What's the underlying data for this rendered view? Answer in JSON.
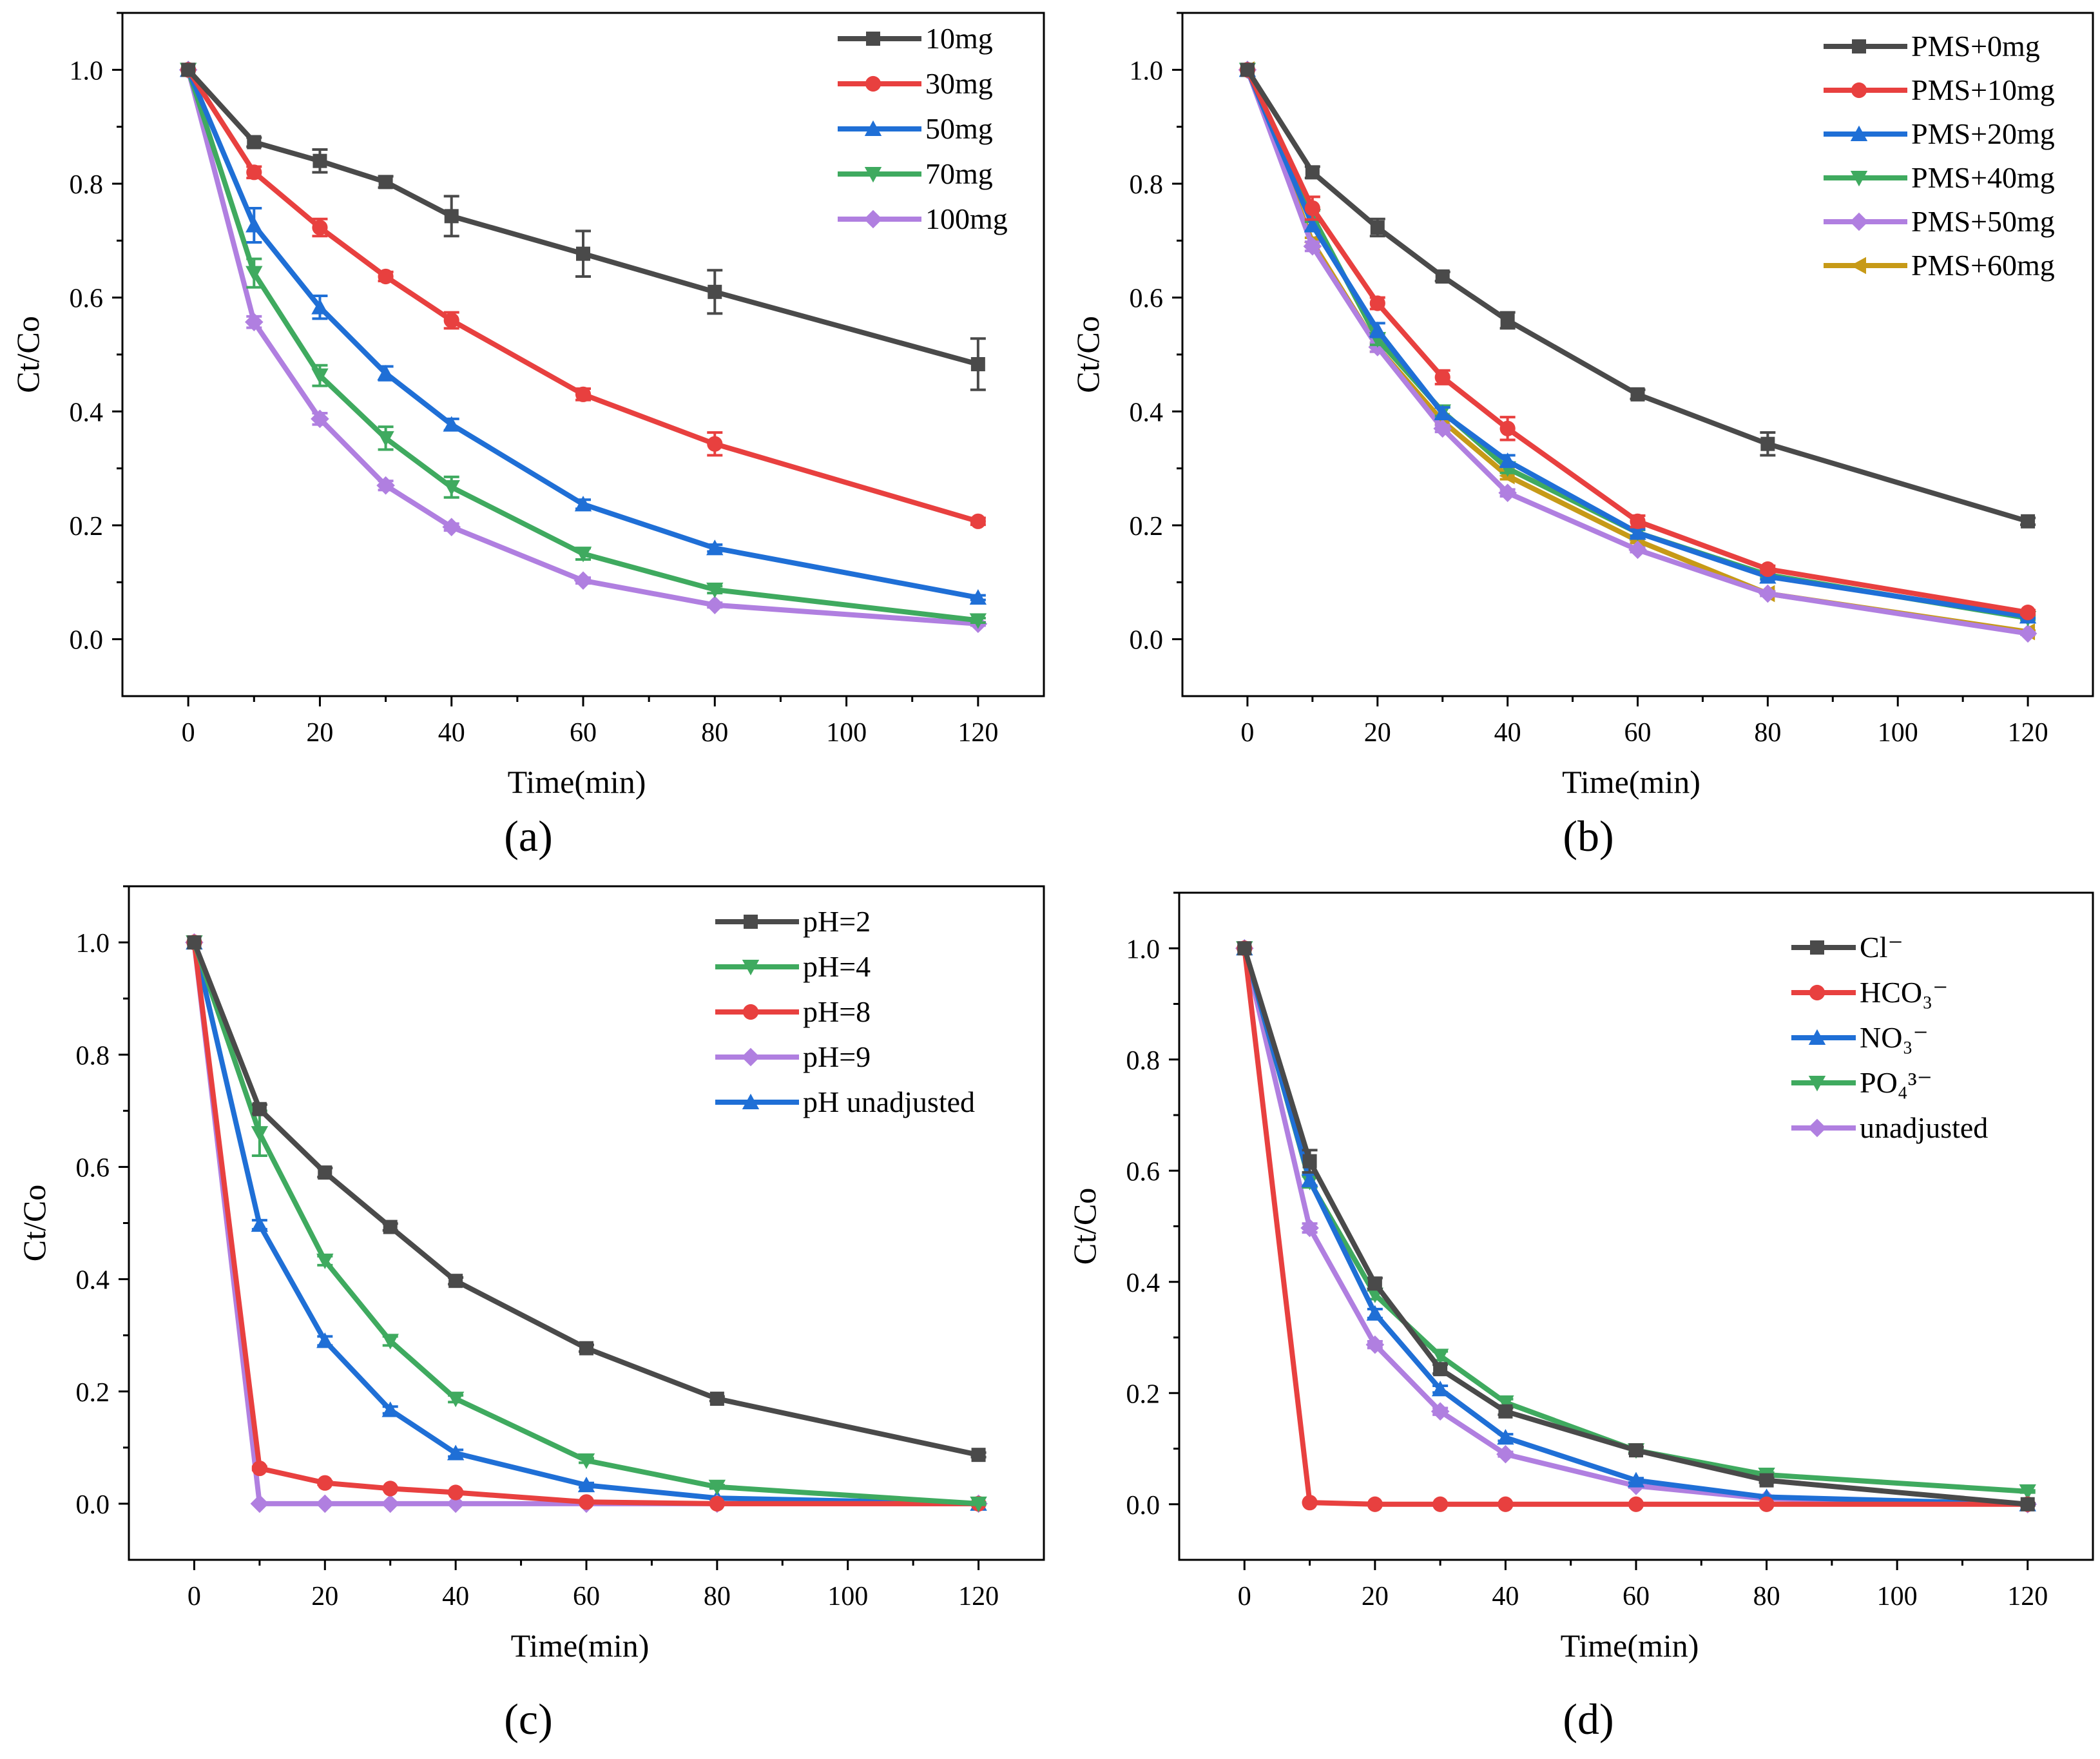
{
  "colors": {
    "black": "#4a4a4a",
    "red": "#e8403f",
    "blue": "#1f6fd6",
    "green": "#3faa5f",
    "purple": "#b07fe0",
    "gold": "#c79a17"
  },
  "chart_data": [
    {
      "type": "line",
      "panel_label": "(a)",
      "xlabel": "Time(min)",
      "ylabel": "Ct/Co",
      "xlim": [
        -10,
        130
      ],
      "ylim": [
        -0.1,
        1.1
      ],
      "xticks": [
        0,
        20,
        40,
        60,
        80,
        100,
        120
      ],
      "yticks": [
        0.0,
        0.2,
        0.4,
        0.6,
        0.8,
        1.0
      ],
      "xtick_labels": [
        "0",
        "20",
        "40",
        "60",
        "80",
        "100",
        "120"
      ],
      "ytick_labels": [
        "0.0",
        "0.2",
        "0.4",
        "0.6",
        "0.8",
        "1.0"
      ],
      "legend": "top-right",
      "x": [
        0,
        10,
        20,
        30,
        40,
        60,
        80,
        120
      ],
      "series": [
        {
          "name": "10mg",
          "color": "#4a4a4a",
          "marker": "square",
          "values": [
            1.0,
            0.873,
            0.84,
            0.803,
            0.743,
            0.677,
            0.61,
            0.483
          ],
          "errors": [
            0,
            0.008,
            0.02,
            0.01,
            0.035,
            0.04,
            0.038,
            0.045
          ]
        },
        {
          "name": "30mg",
          "color": "#e8403f",
          "marker": "circle",
          "values": [
            1.0,
            0.82,
            0.723,
            0.637,
            0.56,
            0.43,
            0.343,
            0.207
          ],
          "errors": [
            0,
            0.01,
            0.015,
            0.008,
            0.014,
            0.01,
            0.02,
            0.006
          ]
        },
        {
          "name": "50mg",
          "color": "#1f6fd6",
          "marker": "triangle-up",
          "values": [
            1.0,
            0.727,
            0.583,
            0.467,
            0.377,
            0.237,
            0.16,
            0.073
          ],
          "errors": [
            0,
            0.03,
            0.02,
            0.012,
            0.01,
            0.008,
            0.006,
            0.004
          ]
        },
        {
          "name": "70mg",
          "color": "#3faa5f",
          "marker": "triangle-down",
          "values": [
            1.0,
            0.643,
            0.463,
            0.353,
            0.267,
            0.15,
            0.087,
            0.033
          ],
          "errors": [
            0,
            0.025,
            0.018,
            0.02,
            0.018,
            0.01,
            0.006,
            0.004
          ]
        },
        {
          "name": "100mg",
          "color": "#b07fe0",
          "marker": "diamond",
          "values": [
            1.0,
            0.557,
            0.387,
            0.27,
            0.197,
            0.103,
            0.06,
            0.027
          ],
          "errors": [
            0,
            0.01,
            0.01,
            0.008,
            0.006,
            0.005,
            0.004,
            0.003
          ]
        }
      ]
    },
    {
      "type": "line",
      "panel_label": "(b)",
      "xlabel": "Time(min)",
      "ylabel": "Ct/Co",
      "xlim": [
        -10,
        130
      ],
      "ylim": [
        -0.1,
        1.1
      ],
      "xticks": [
        0,
        20,
        40,
        60,
        80,
        100,
        120
      ],
      "yticks": [
        0.0,
        0.2,
        0.4,
        0.6,
        0.8,
        1.0
      ],
      "xtick_labels": [
        "0",
        "20",
        "40",
        "60",
        "80",
        "100",
        "120"
      ],
      "ytick_labels": [
        "0.0",
        "0.2",
        "0.4",
        "0.6",
        "0.8",
        "1.0"
      ],
      "legend": "top-right",
      "x": [
        0,
        10,
        20,
        30,
        40,
        60,
        80,
        120
      ],
      "series": [
        {
          "name": "PMS+0mg",
          "color": "#4a4a4a",
          "marker": "square",
          "values": [
            1.0,
            0.82,
            0.723,
            0.637,
            0.56,
            0.43,
            0.343,
            0.207
          ],
          "errors": [
            0,
            0.01,
            0.015,
            0.008,
            0.014,
            0.008,
            0.02,
            0.006
          ]
        },
        {
          "name": "PMS+10mg",
          "color": "#e8403f",
          "marker": "circle",
          "values": [
            1.0,
            0.757,
            0.59,
            0.46,
            0.37,
            0.207,
            0.123,
            0.047
          ],
          "errors": [
            0,
            0.02,
            0.01,
            0.012,
            0.02,
            0.01,
            0.006,
            0.004
          ]
        },
        {
          "name": "PMS+20mg",
          "color": "#1f6fd6",
          "marker": "triangle-up",
          "values": [
            1.0,
            0.727,
            0.543,
            0.397,
            0.313,
            0.187,
            0.11,
            0.04
          ],
          "errors": [
            0,
            0.01,
            0.012,
            0.01,
            0.01,
            0.006,
            0.005,
            0.003
          ]
        },
        {
          "name": "PMS+40mg",
          "color": "#3faa5f",
          "marker": "triangle-down",
          "values": [
            1.0,
            0.743,
            0.527,
            0.4,
            0.3,
            0.187,
            0.113,
            0.037
          ],
          "errors": [
            0,
            0.01,
            0.01,
            0.008,
            0.008,
            0.005,
            0.004,
            0.003
          ]
        },
        {
          "name": "PMS+50mg",
          "color": "#b07fe0",
          "marker": "diamond",
          "values": [
            1.0,
            0.69,
            0.513,
            0.37,
            0.257,
            0.157,
            0.08,
            0.01
          ],
          "errors": [
            0,
            0.008,
            0.008,
            0.006,
            0.006,
            0.004,
            0.004,
            0.002
          ]
        },
        {
          "name": "PMS+60mg",
          "color": "#c79a17",
          "marker": "triangle-left",
          "values": [
            1.0,
            0.697,
            0.513,
            0.383,
            0.287,
            0.173,
            0.08,
            0.013
          ],
          "errors": [
            0,
            0.008,
            0.008,
            0.006,
            0.006,
            0.004,
            0.004,
            0.002
          ]
        }
      ]
    },
    {
      "type": "line",
      "panel_label": "(c)",
      "xlabel": "Time(min)",
      "ylabel": "Ct/Co",
      "xlim": [
        -10,
        130
      ],
      "ylim": [
        -0.1,
        1.1
      ],
      "xticks": [
        0,
        20,
        40,
        60,
        80,
        100,
        120
      ],
      "yticks": [
        0.0,
        0.2,
        0.4,
        0.6,
        0.8,
        1.0
      ],
      "xtick_labels": [
        "0",
        "20",
        "40",
        "60",
        "80",
        "100",
        "120"
      ],
      "ytick_labels": [
        "0.0",
        "0.2",
        "0.4",
        "0.6",
        "0.8",
        "1.0"
      ],
      "legend": "top-right",
      "x": [
        0,
        10,
        20,
        30,
        40,
        60,
        80,
        120
      ],
      "series": [
        {
          "name": "pH=2",
          "color": "#4a4a4a",
          "marker": "square",
          "values": [
            1.0,
            0.703,
            0.59,
            0.493,
            0.397,
            0.277,
            0.187,
            0.087
          ],
          "errors": [
            0,
            0.008,
            0.008,
            0.006,
            0.006,
            0.006,
            0.004,
            0.004
          ]
        },
        {
          "name": "pH=4",
          "color": "#3faa5f",
          "marker": "triangle-down",
          "values": [
            1.0,
            0.66,
            0.433,
            0.29,
            0.187,
            0.077,
            0.03,
            0.0
          ],
          "errors": [
            0,
            0.04,
            0.008,
            0.008,
            0.006,
            0.004,
            0.003,
            0.002
          ]
        },
        {
          "name": "pH=8",
          "color": "#e8403f",
          "marker": "circle",
          "values": [
            1.0,
            0.063,
            0.037,
            0.027,
            0.02,
            0.003,
            0.0,
            0.0
          ],
          "errors": [
            0,
            0.003,
            0.003,
            0.002,
            0.002,
            0.001,
            0,
            0
          ]
        },
        {
          "name": "pH=9",
          "color": "#b07fe0",
          "marker": "diamond",
          "values": [
            1.0,
            0.0,
            0.0,
            0.0,
            0.0,
            0.0,
            0.0,
            0.0
          ],
          "errors": [
            0,
            0,
            0,
            0,
            0,
            0,
            0,
            0
          ]
        },
        {
          "name": "pH unadjusted",
          "color": "#1f6fd6",
          "marker": "triangle-up",
          "values": [
            1.0,
            0.497,
            0.29,
            0.167,
            0.09,
            0.033,
            0.01,
            0.0
          ],
          "errors": [
            0,
            0.008,
            0.008,
            0.006,
            0.006,
            0.004,
            0.002,
            0.002
          ]
        }
      ]
    },
    {
      "type": "line",
      "panel_label": "(d)",
      "xlabel": "Time(min)",
      "ylabel": "Ct/Co",
      "xlim": [
        -10,
        130
      ],
      "ylim": [
        -0.1,
        1.1
      ],
      "xticks": [
        0,
        20,
        40,
        60,
        80,
        100,
        120
      ],
      "yticks": [
        0.0,
        0.2,
        0.4,
        0.6,
        0.8,
        1.0
      ],
      "xtick_labels": [
        "0",
        "20",
        "40",
        "60",
        "80",
        "100",
        "120"
      ],
      "ytick_labels": [
        "0.0",
        "0.2",
        "0.4",
        "0.6",
        "0.8",
        "1.0"
      ],
      "legend": "top-right",
      "x": [
        0,
        10,
        20,
        30,
        40,
        60,
        80,
        120
      ],
      "series": [
        {
          "name": "Cl⁻",
          "color": "#4a4a4a",
          "marker": "square",
          "values": [
            1.0,
            0.617,
            0.397,
            0.243,
            0.167,
            0.097,
            0.043,
            0.0
          ],
          "errors": [
            0,
            0.02,
            0.01,
            0.008,
            0.006,
            0.006,
            0.004,
            0.002
          ]
        },
        {
          "name": "HCO₃⁻",
          "color": "#e8403f",
          "marker": "circle",
          "values": [
            1.0,
            0.003,
            0.0,
            0.0,
            0.0,
            0.0,
            0.0,
            0.0
          ],
          "errors": [
            0,
            0,
            0,
            0,
            0,
            0,
            0,
            0
          ]
        },
        {
          "name": "NO₃⁻",
          "color": "#1f6fd6",
          "marker": "triangle-up",
          "values": [
            1.0,
            0.583,
            0.343,
            0.207,
            0.12,
            0.043,
            0.013,
            0.0
          ],
          "errors": [
            0,
            0.01,
            0.008,
            0.006,
            0.006,
            0.004,
            0.002,
            0.002
          ]
        },
        {
          "name": "PO₄³⁻",
          "color": "#3faa5f",
          "marker": "triangle-down",
          "values": [
            1.0,
            0.58,
            0.377,
            0.267,
            0.183,
            0.097,
            0.053,
            0.023
          ],
          "errors": [
            0,
            0.01,
            0.008,
            0.008,
            0.006,
            0.004,
            0.004,
            0.002
          ]
        },
        {
          "name": "unadjusted",
          "color": "#b07fe0",
          "marker": "diamond",
          "values": [
            1.0,
            0.497,
            0.287,
            0.167,
            0.09,
            0.033,
            0.01,
            0.0
          ],
          "errors": [
            0,
            0.008,
            0.006,
            0.006,
            0.004,
            0.003,
            0.002,
            0.002
          ]
        }
      ]
    }
  ]
}
